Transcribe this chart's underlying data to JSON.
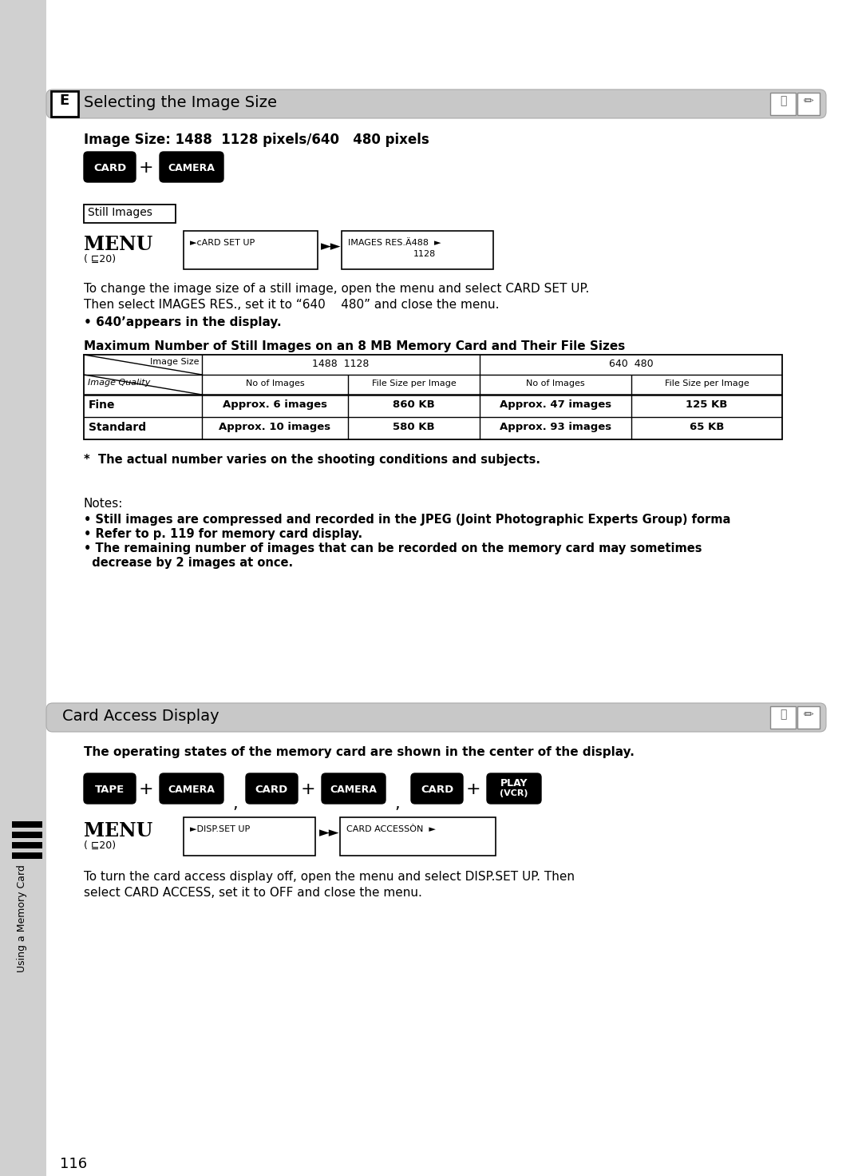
{
  "page_bg": "#ffffff",
  "page_number": "116",
  "section1_title": "Selecting the Image Size",
  "section1_subtitle": "Image Size: 1488  1128 pixels/640   480 pixels",
  "still_images_label": "Still Images",
  "menu_ref1": "( ⊑20)",
  "menu_box1a": "►cARD SET UP",
  "menu_box1b_line1": "IMAGES RES.Ä488  ►",
  "menu_box1b_line2": "1128",
  "para1_line1": "To change the image size of a still image, open the menu and select CARD SET UP.",
  "para1_line2": "Then select IMAGES RES., set it to “640    480” and close the menu.",
  "para1_bullet": "• 640’appears in the display.",
  "table_title": "Maximum Number of Still Images on an 8 MB Memory Card and Their File Sizes",
  "table_header1_left": "Image Size",
  "table_header1_mid": "1488  1128",
  "table_header1_right": "640  480",
  "table_subh": [
    "Image Quality",
    "No of Images",
    "File Size per Image",
    "No of Images",
    "File Size per Image"
  ],
  "table_rows": [
    [
      "Fine",
      "Approx. 6 images",
      "860 KB",
      "Approx. 47 images",
      "125 KB"
    ],
    [
      "Standard",
      "Approx. 10 images",
      "580 KB",
      "Approx. 93 images",
      "65 KB"
    ]
  ],
  "asterisk_note": "*  The actual number varies on the shooting conditions and subjects.",
  "notes_header": "Notes:",
  "note1": "• Still images are compressed and recorded in the JPEG (Joint Photographic Experts Group) forma",
  "note2": "• Refer to p. 119 for memory card display.",
  "note3a": "• The remaining number of images that can be recorded on the memory card may sometimes",
  "note3b": "  decrease by 2 images at once.",
  "section2_title": "Card Access Display",
  "section2_subtitle": "The operating states of the memory card are shown in the center of the display.",
  "menu_ref2": "( ⊑20)",
  "menu_box2a": "►DISP.SET UP",
  "menu_box2b": "CARD ACCESSÒN  ►",
  "para2_line1": "To turn the card access display off, open the menu and select DISP.SET UP. Then",
  "para2_line2": "select CARD ACCESS, set it to OFF and close the menu.",
  "sidebar_text": "Using a Memory Card",
  "header_gray": "#c8c8c8",
  "sidebar_gray": "#d0d0d0",
  "black": "#000000",
  "white": "#ffffff"
}
